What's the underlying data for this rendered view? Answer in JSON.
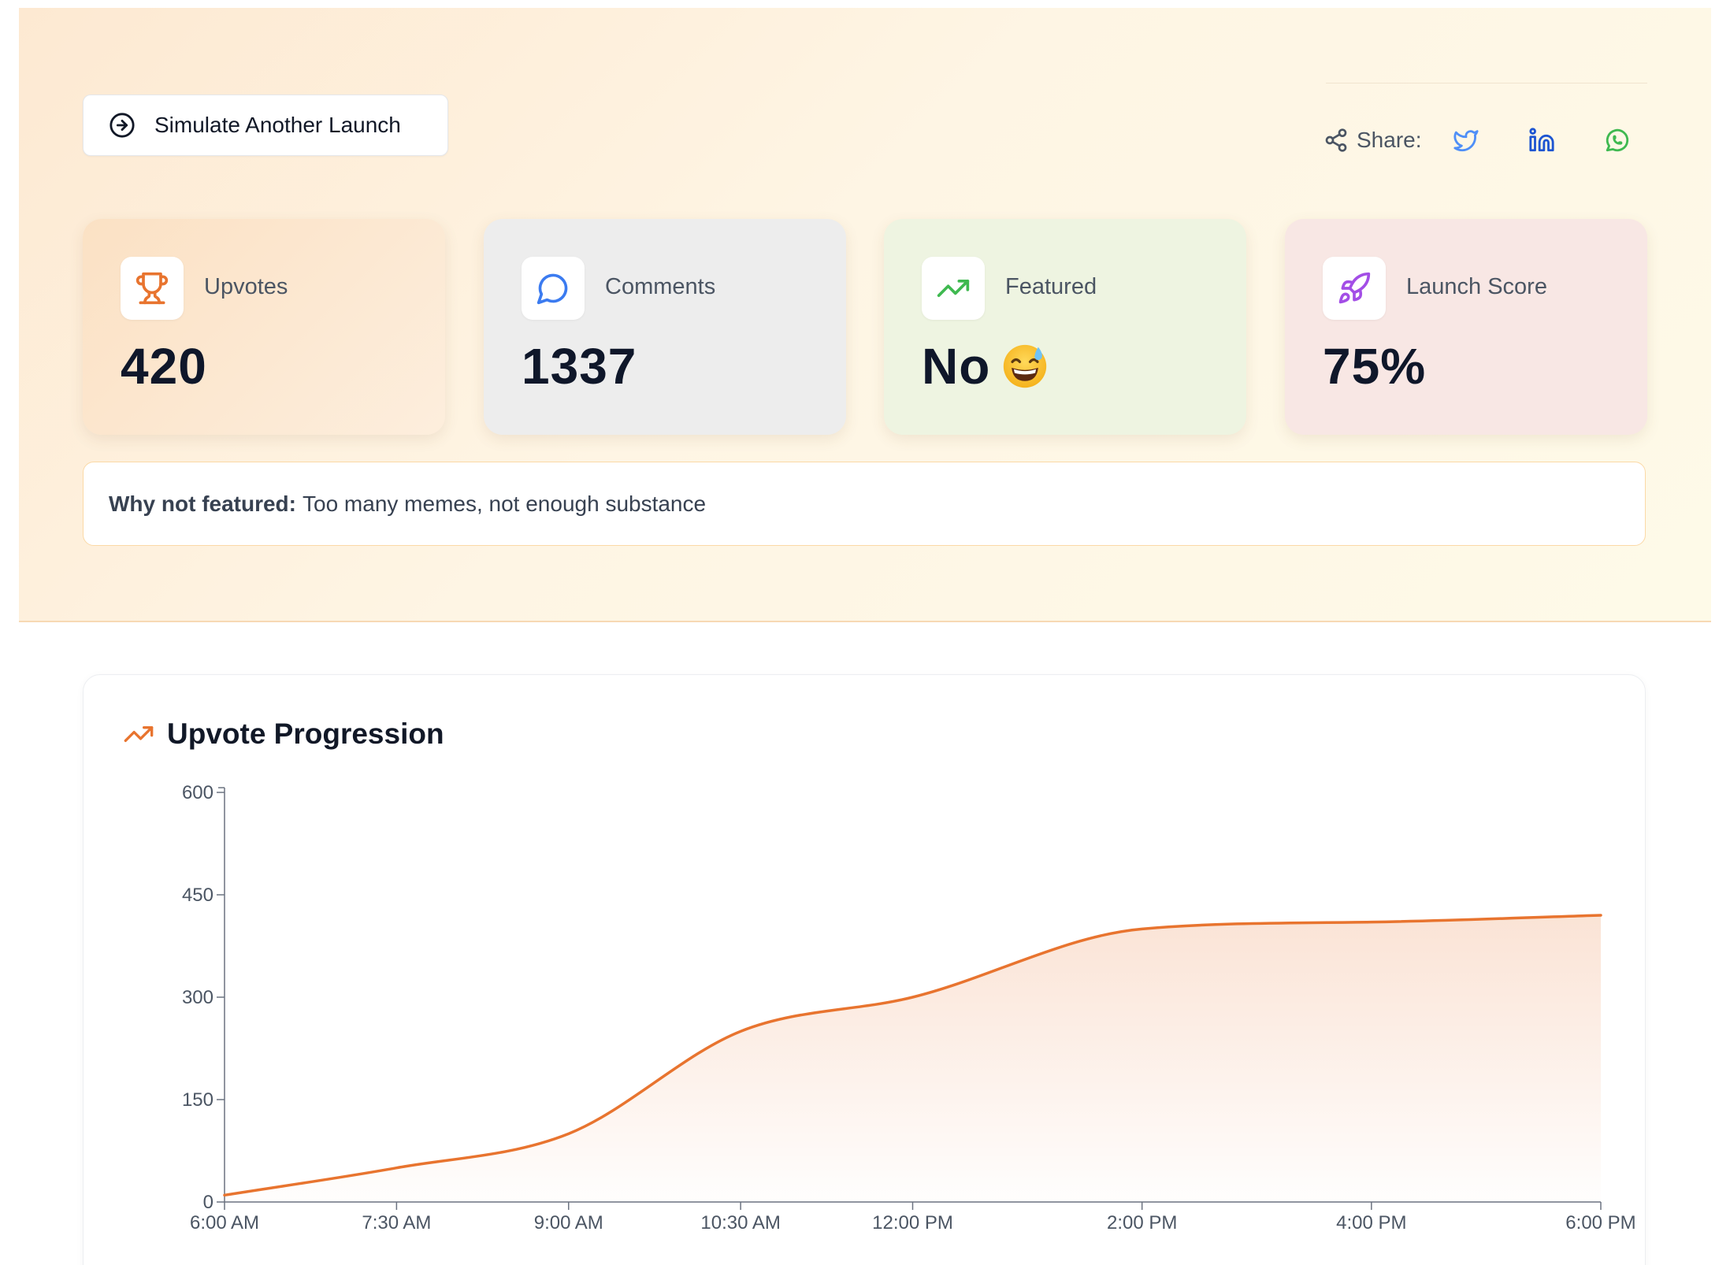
{
  "actions": {
    "simulate_label": "Simulate Another Launch"
  },
  "share": {
    "label": "Share:",
    "icons": [
      "share-icon",
      "twitter-icon",
      "linkedin-icon",
      "whatsapp-icon"
    ]
  },
  "stats": [
    {
      "label": "Upvotes",
      "value": "420",
      "icon": "trophy-icon",
      "icon_color": "#e8742f"
    },
    {
      "label": "Comments",
      "value": "1337",
      "icon": "message-circle-icon",
      "icon_color": "#3b7bf0"
    },
    {
      "label": "Featured",
      "value": "No",
      "icon": "trending-up-icon",
      "icon_color": "#3fb950",
      "emoji": "grinning-sweat-emoji"
    },
    {
      "label": "Launch Score",
      "value": "75%",
      "icon": "rocket-icon",
      "icon_color": "#a34ee6"
    }
  ],
  "why_not_featured": {
    "label": "Why not featured:",
    "text": "Too many memes, not enough substance"
  },
  "chart_title": "Upvote Progression",
  "chart_data": {
    "type": "area",
    "title": "Upvote Progression",
    "x": [
      "6:00 AM",
      "7:30 AM",
      "9:00 AM",
      "10:30 AM",
      "12:00 PM",
      "2:00 PM",
      "4:00 PM",
      "6:00 PM"
    ],
    "values": [
      10,
      50,
      100,
      250,
      300,
      400,
      410,
      420
    ],
    "ylim": [
      0,
      600
    ],
    "yticks": [
      0,
      150,
      300,
      450,
      600
    ],
    "line_color": "#e8742f",
    "grid": false
  }
}
